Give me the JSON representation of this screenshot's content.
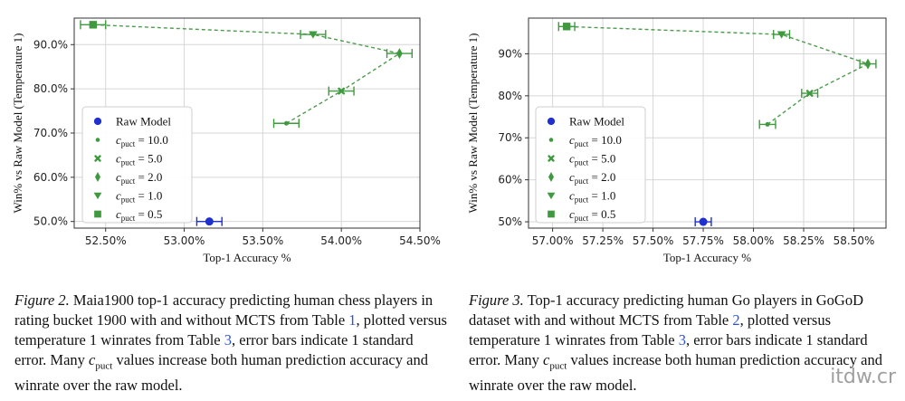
{
  "chart_data": [
    {
      "type": "scatter",
      "xlabel": "Top-1 Accuracy %",
      "ylabel": "Win% vs Raw Model (Temperature 1)",
      "xlim": [
        52.3,
        54.5
      ],
      "ylim": [
        48.5,
        96
      ],
      "xticks": [
        52.5,
        53.0,
        53.5,
        54.0,
        54.5
      ],
      "xtick_labels": [
        "52.50%",
        "53.00%",
        "53.50%",
        "54.00%",
        "54.50%"
      ],
      "yticks": [
        50,
        60,
        70,
        80,
        90
      ],
      "ytick_labels": [
        "50.0%",
        "60.0%",
        "70.0%",
        "80.0%",
        "90.0%"
      ],
      "grid": true,
      "legend": "lower-left",
      "series": [
        {
          "name": "Raw Model",
          "marker": "circle",
          "color": "#1f2fd0",
          "x": 53.16,
          "y": 50.0,
          "xerr": 0.08
        },
        {
          "name": "c_puct = 10.0",
          "marker": "dot",
          "color": "#3f9a3f",
          "x": 53.65,
          "y": 72.2,
          "xerr": 0.08
        },
        {
          "name": "c_puct = 5.0",
          "marker": "x",
          "color": "#3f9a3f",
          "x": 54.0,
          "y": 79.5,
          "xerr": 0.08
        },
        {
          "name": "c_puct = 2.0",
          "marker": "diamond",
          "color": "#3f9a3f",
          "x": 54.37,
          "y": 88.0,
          "xerr": 0.08
        },
        {
          "name": "c_puct = 1.0",
          "marker": "triangle-down",
          "color": "#3f9a3f",
          "x": 53.82,
          "y": 92.3,
          "xerr": 0.08
        },
        {
          "name": "c_puct = 0.5",
          "marker": "square",
          "color": "#3f9a3f",
          "x": 52.42,
          "y": 94.5,
          "xerr": 0.08
        }
      ]
    },
    {
      "type": "scatter",
      "xlabel": "Top-1 Accuracy %",
      "ylabel": "Win% vs Raw Model (Temperature 1)",
      "xlim": [
        56.88,
        58.66
      ],
      "ylim": [
        48.5,
        98.5
      ],
      "xticks": [
        57.0,
        57.25,
        57.5,
        57.75,
        58.0,
        58.25,
        58.5
      ],
      "xtick_labels": [
        "57.00%",
        "57.25%",
        "57.50%",
        "57.75%",
        "58.00%",
        "58.25%",
        "58.50%"
      ],
      "yticks": [
        50,
        60,
        70,
        80,
        90
      ],
      "ytick_labels": [
        "50%",
        "60%",
        "70%",
        "80%",
        "90%"
      ],
      "grid": true,
      "legend": "lower-left",
      "series": [
        {
          "name": "Raw Model",
          "marker": "circle",
          "color": "#1f2fd0",
          "x": 57.75,
          "y": 50.0,
          "xerr": 0.04
        },
        {
          "name": "c_puct = 10.0",
          "marker": "dot",
          "color": "#3f9a3f",
          "x": 58.07,
          "y": 73.2,
          "xerr": 0.04
        },
        {
          "name": "c_puct = 5.0",
          "marker": "x",
          "color": "#3f9a3f",
          "x": 58.28,
          "y": 80.6,
          "xerr": 0.04
        },
        {
          "name": "c_puct = 2.0",
          "marker": "diamond",
          "color": "#3f9a3f",
          "x": 58.57,
          "y": 87.6,
          "xerr": 0.04
        },
        {
          "name": "c_puct = 1.0",
          "marker": "triangle-down",
          "color": "#3f9a3f",
          "x": 58.14,
          "y": 94.6,
          "xerr": 0.04
        },
        {
          "name": "c_puct = 0.5",
          "marker": "square",
          "color": "#3f9a3f",
          "x": 57.07,
          "y": 96.5,
          "xerr": 0.04
        }
      ]
    }
  ],
  "legend_items": [
    {
      "main": "Raw Model",
      "sub": "",
      "rest": ""
    },
    {
      "main": "c",
      "sub": "puct",
      "rest": " = 10.0"
    },
    {
      "main": "c",
      "sub": "puct",
      "rest": " = 5.0"
    },
    {
      "main": "c",
      "sub": "puct",
      "rest": " = 2.0"
    },
    {
      "main": "c",
      "sub": "puct",
      "rest": " = 1.0"
    },
    {
      "main": "c",
      "sub": "puct",
      "rest": " = 0.5"
    }
  ],
  "captions": {
    "left": {
      "fig": "Figure 2.",
      "t1": " Maia1900 top-1 accuracy predicting human chess players in rating bucket 1900 with and without MCTS from Table ",
      "ref1": "1",
      "t2": ", plotted versus temperature 1 winrates from Table ",
      "ref2": "3",
      "t3": ", error bars indicate 1 standard error. Many ",
      "cvar": "c",
      "csub": "puct",
      "t4": " values increase both human prediction accuracy and winrate over the raw model."
    },
    "right": {
      "fig": "Figure 3.",
      "t1": " Top-1 accuracy predicting human Go players in GoGoD dataset with and without MCTS from Table ",
      "ref1": "2",
      "t2": ", plotted versus temperature 1 winrates from Table ",
      "ref2": "3",
      "t3": ", error bars indicate 1 standard error. Many ",
      "cvar": "c",
      "csub": "puct",
      "t4": " values increase both human prediction accuracy and winrate over the raw model."
    }
  },
  "watermark": "itdw.cr"
}
